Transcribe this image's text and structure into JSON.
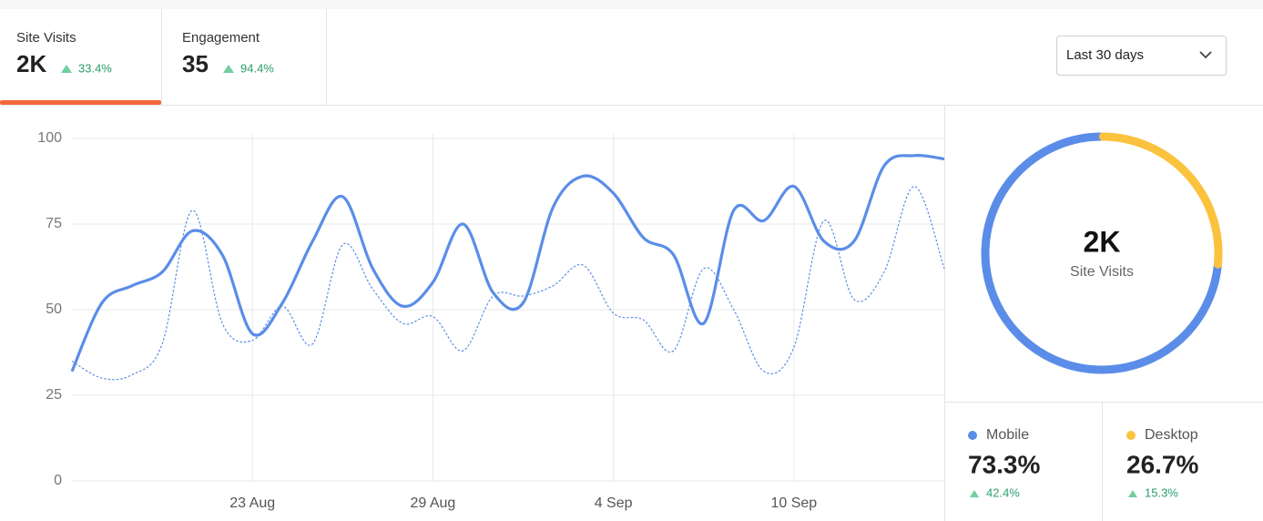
{
  "tabs": [
    {
      "label": "Site Visits",
      "value": "2K",
      "change": "33.4%"
    },
    {
      "label": "Engagement",
      "value": "35",
      "change": "94.4%"
    }
  ],
  "dropdown": "Last 30 days",
  "chart_data": [
    {
      "type": "line",
      "categories": [
        null,
        null,
        null,
        null,
        null,
        null,
        "23 Aug",
        null,
        null,
        null,
        null,
        null,
        "29 Aug",
        null,
        null,
        null,
        null,
        null,
        "4 Sep",
        null,
        null,
        null,
        null,
        null,
        "10 Sep",
        null,
        null,
        null,
        null,
        null
      ],
      "series": [
        {
          "color": "#5b8de8",
          "line_style": "solid",
          "values": [
            32,
            52,
            57,
            61,
            73,
            66,
            43,
            52,
            70,
            83,
            62,
            51,
            58,
            75,
            55,
            52,
            80,
            89,
            84,
            71,
            66,
            46,
            79,
            76,
            86,
            70,
            70,
            92,
            95,
            94
          ]
        },
        {
          "color": "#5b8de8",
          "line_style": "dashed",
          "values": [
            35,
            30,
            31,
            40,
            79,
            46,
            41,
            51,
            40,
            69,
            56,
            46,
            48,
            38,
            54,
            54,
            57,
            63,
            49,
            47,
            38,
            62,
            50,
            32,
            39,
            76,
            53,
            61,
            86,
            62
          ]
        }
      ],
      "ylim": [
        0,
        100
      ],
      "yticks": [
        0,
        25,
        50,
        75,
        100
      ],
      "grid": true
    },
    {
      "type": "donut",
      "center_value": "2K",
      "center_label": "Site Visits",
      "categories": [
        "Mobile",
        "Desktop"
      ],
      "values": [
        73.3,
        26.7
      ],
      "value_labels": [
        "73.3%",
        "26.7%"
      ],
      "changes": [
        "42.4%",
        "15.3%"
      ],
      "colors": [
        "#5b8de8",
        "#fbc23e"
      ],
      "direction": "counterclockwise"
    }
  ]
}
